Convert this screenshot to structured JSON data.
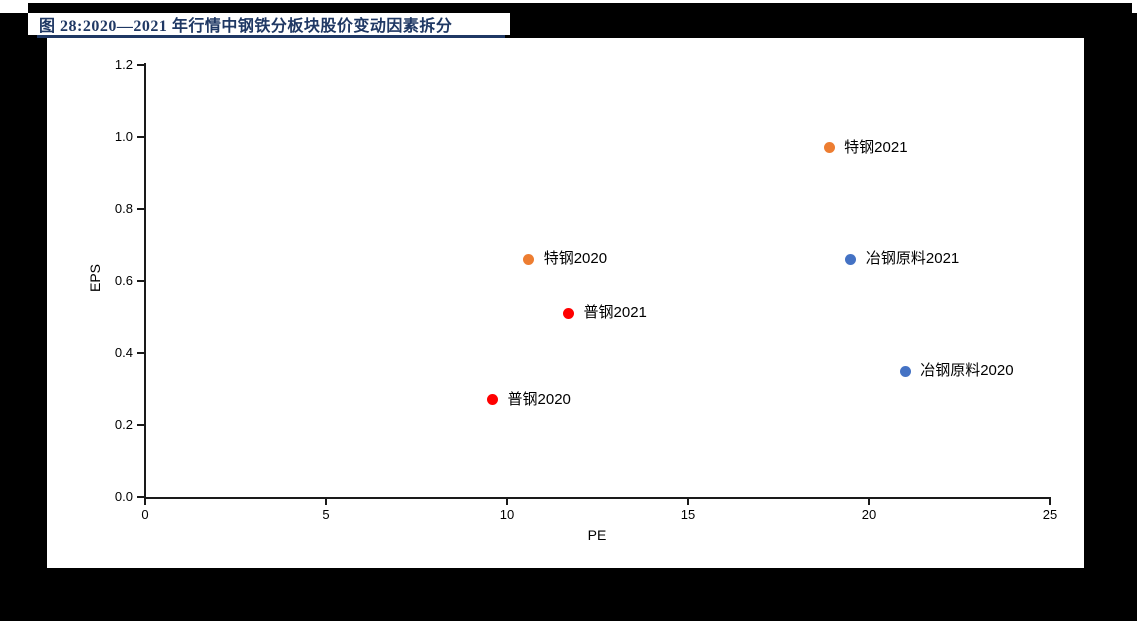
{
  "figure": {
    "title": "图 28:2020—2021 年行情中钢铁分板块股价变动因素拆分",
    "title_color": "#1F3864"
  },
  "colors": {
    "page_background": "#000000",
    "panel_background": "#ffffff",
    "axis": "#1a1a1a",
    "text": "#000000"
  },
  "chart_data": {
    "type": "scatter",
    "title": "",
    "xlabel": "PE",
    "ylabel": "EPS",
    "xlim": [
      0,
      25
    ],
    "ylim": [
      0.0,
      1.2
    ],
    "x_ticks": [
      "0",
      "5",
      "10",
      "15",
      "20",
      "25"
    ],
    "y_ticks": [
      "0.0",
      "0.2",
      "0.4",
      "0.6",
      "0.8",
      "1.0",
      "1.2"
    ],
    "grid": false,
    "legend_position": "labels-beside-points",
    "points": [
      {
        "label": "特钢2021",
        "x": 18.9,
        "y": 0.97,
        "color": "#ED7D31"
      },
      {
        "label": "特钢2020",
        "x": 10.6,
        "y": 0.66,
        "color": "#ED7D31"
      },
      {
        "label": "冶钢原料2021",
        "x": 19.5,
        "y": 0.66,
        "color": "#4472C4"
      },
      {
        "label": "普钢2021",
        "x": 11.7,
        "y": 0.51,
        "color": "#FF0000"
      },
      {
        "label": "冶钢原料2020",
        "x": 21.0,
        "y": 0.35,
        "color": "#4472C4"
      },
      {
        "label": "普钢2020",
        "x": 9.6,
        "y": 0.27,
        "color": "#FF0000"
      }
    ]
  }
}
